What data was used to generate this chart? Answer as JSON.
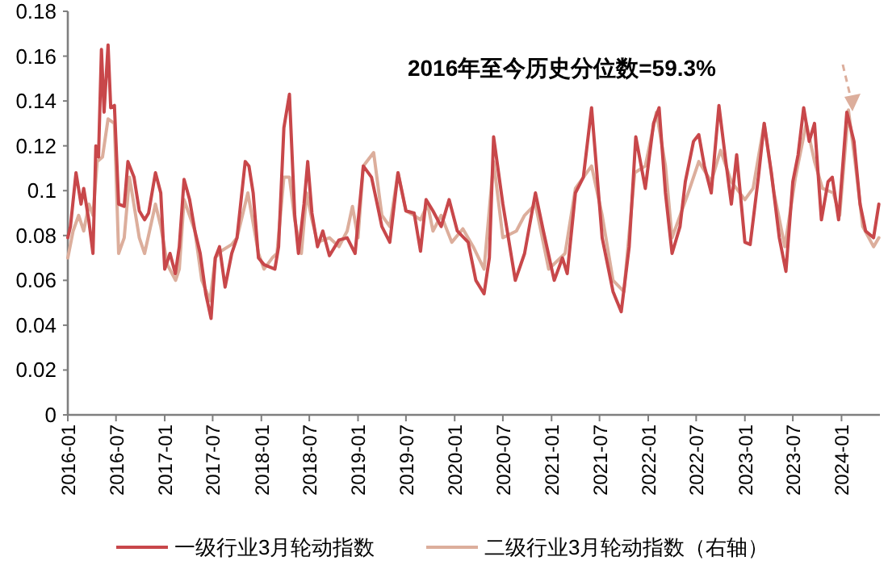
{
  "chart_data": {
    "type": "line",
    "annotations": [
      "2016年至今历史分位数=59.3%"
    ],
    "xlim": [
      "2016-01-01",
      "2024-05-25"
    ],
    "xticks": [
      "2016-01",
      "2016-07",
      "2017-01",
      "2017-07",
      "2018-01",
      "2018-07",
      "2019-01",
      "2019-07",
      "2020-01",
      "2020-07",
      "2021-01",
      "2021-07",
      "2022-01",
      "2022-07",
      "2023-01",
      "2023-07",
      "2024-01"
    ],
    "ylim": [
      0,
      0.18
    ],
    "yticks": [
      0,
      0.02,
      0.04,
      0.06,
      0.08,
      0.1,
      0.12,
      0.14,
      0.16,
      0.18
    ],
    "legend": "bottom",
    "grid": false,
    "marker": "none",
    "line_style": "solid",
    "series": [
      {
        "name": "一级行业3月轮动指数",
        "color": "#c8474a",
        "x": [
          "2016-01-01",
          "2016-01-11",
          "2016-02-01",
          "2016-02-20",
          "2016-03-01",
          "2016-03-20",
          "2016-04-05",
          "2016-04-16",
          "2016-04-26",
          "2016-05-07",
          "2016-05-17",
          "2016-06-01",
          "2016-06-11",
          "2016-06-25",
          "2016-07-11",
          "2016-08-01",
          "2016-08-15",
          "2016-09-07",
          "2016-09-27",
          "2016-10-17",
          "2016-11-01",
          "2016-11-27",
          "2016-12-17",
          "2017-01-01",
          "2017-01-21",
          "2017-02-10",
          "2017-02-25",
          "2017-03-15",
          "2017-04-05",
          "2017-04-25",
          "2017-05-15",
          "2017-06-05",
          "2017-06-25",
          "2017-07-11",
          "2017-07-27",
          "2017-08-17",
          "2017-09-11",
          "2017-10-01",
          "2017-11-01",
          "2017-11-15",
          "2017-12-01",
          "2017-12-21",
          "2018-01-11",
          "2018-02-21",
          "2018-03-07",
          "2018-03-27",
          "2018-04-17",
          "2018-05-07",
          "2018-05-21",
          "2018-06-11",
          "2018-06-25",
          "2018-07-11",
          "2018-08-01",
          "2018-08-21",
          "2018-09-15",
          "2018-10-21",
          "2018-11-21",
          "2018-12-21",
          "2019-01-21",
          "2019-02-21",
          "2019-03-11",
          "2019-04-01",
          "2019-05-01",
          "2019-06-01",
          "2019-07-01",
          "2019-08-01",
          "2019-08-25",
          "2019-09-15",
          "2019-10-11",
          "2019-11-11",
          "2019-12-11",
          "2020-01-11",
          "2020-02-21",
          "2020-03-21",
          "2020-04-21",
          "2020-05-11",
          "2020-05-27",
          "2020-07-01",
          "2020-08-17",
          "2020-09-21",
          "2020-11-01",
          "2020-12-01",
          "2021-01-11",
          "2021-02-11",
          "2021-03-01",
          "2021-04-01",
          "2021-05-01",
          "2021-06-01",
          "2021-07-11",
          "2021-08-21",
          "2021-09-21",
          "2021-10-21",
          "2021-11-15",
          "2021-12-21",
          "2022-01-21",
          "2022-02-11",
          "2022-03-07",
          "2022-04-01",
          "2022-05-01",
          "2022-05-21",
          "2022-06-21",
          "2022-07-11",
          "2022-08-01",
          "2022-08-27",
          "2022-09-25",
          "2022-10-21",
          "2022-11-11",
          "2022-12-01",
          "2023-01-01",
          "2023-01-21",
          "2023-02-21",
          "2023-03-15",
          "2023-04-11",
          "2023-05-11",
          "2023-06-05",
          "2023-07-01",
          "2023-07-21",
          "2023-08-11",
          "2023-09-01",
          "2023-09-21",
          "2023-10-17",
          "2023-11-11",
          "2023-11-27",
          "2023-12-21",
          "2024-01-21",
          "2024-02-17",
          "2024-03-11",
          "2024-04-01",
          "2024-05-01",
          "2024-05-21"
        ],
        "values": [
          0.079,
          0.084,
          0.108,
          0.094,
          0.101,
          0.087,
          0.072,
          0.12,
          0.115,
          0.163,
          0.135,
          0.165,
          0.137,
          0.138,
          0.094,
          0.093,
          0.113,
          0.106,
          0.091,
          0.087,
          0.09,
          0.108,
          0.099,
          0.065,
          0.072,
          0.063,
          0.075,
          0.105,
          0.096,
          0.082,
          0.072,
          0.054,
          0.043,
          0.07,
          0.075,
          0.057,
          0.072,
          0.079,
          0.113,
          0.111,
          0.099,
          0.07,
          0.067,
          0.065,
          0.075,
          0.128,
          0.143,
          0.089,
          0.072,
          0.094,
          0.113,
          0.09,
          0.075,
          0.082,
          0.071,
          0.078,
          0.079,
          0.072,
          0.111,
          0.106,
          0.096,
          0.084,
          0.077,
          0.108,
          0.091,
          0.09,
          0.073,
          0.096,
          0.091,
          0.084,
          0.096,
          0.082,
          0.077,
          0.06,
          0.054,
          0.07,
          0.124,
          0.094,
          0.06,
          0.072,
          0.099,
          0.082,
          0.06,
          0.07,
          0.063,
          0.099,
          0.106,
          0.137,
          0.079,
          0.055,
          0.046,
          0.075,
          0.124,
          0.101,
          0.13,
          0.137,
          0.099,
          0.072,
          0.084,
          0.104,
          0.122,
          0.125,
          0.111,
          0.099,
          0.138,
          0.113,
          0.094,
          0.116,
          0.077,
          0.076,
          0.106,
          0.13,
          0.108,
          0.079,
          0.064,
          0.104,
          0.116,
          0.137,
          0.122,
          0.13,
          0.087,
          0.104,
          0.106,
          0.087,
          0.135,
          0.122,
          0.094,
          0.082,
          0.079,
          0.094
        ]
      },
      {
        "name": "二级行业3月轮动指数（右轴）",
        "color": "#dcae9c",
        "x": [
          "2016-01-01",
          "2016-01-21",
          "2016-02-11",
          "2016-03-01",
          "2016-03-21",
          "2016-04-05",
          "2016-04-21",
          "2016-05-11",
          "2016-06-01",
          "2016-06-25",
          "2016-07-11",
          "2016-08-01",
          "2016-08-21",
          "2016-09-27",
          "2016-10-17",
          "2016-11-27",
          "2016-12-17",
          "2017-01-11",
          "2017-02-11",
          "2017-02-25",
          "2017-03-15",
          "2017-04-25",
          "2017-05-21",
          "2017-06-21",
          "2017-07-11",
          "2017-08-01",
          "2017-09-11",
          "2017-10-01",
          "2017-11-11",
          "2017-12-21",
          "2018-01-11",
          "2018-02-11",
          "2018-03-01",
          "2018-03-27",
          "2018-04-17",
          "2018-05-07",
          "2018-06-01",
          "2018-06-21",
          "2018-07-11",
          "2018-08-01",
          "2018-09-15",
          "2018-10-21",
          "2018-11-21",
          "2018-12-11",
          "2019-01-01",
          "2019-01-21",
          "2019-03-01",
          "2019-04-01",
          "2019-05-01",
          "2019-06-01",
          "2019-07-01",
          "2019-08-01",
          "2019-08-25",
          "2019-09-21",
          "2019-10-11",
          "2019-11-11",
          "2019-12-21",
          "2020-02-01",
          "2020-03-11",
          "2020-04-21",
          "2020-05-27",
          "2020-07-01",
          "2020-08-21",
          "2020-09-21",
          "2020-11-01",
          "2020-12-21",
          "2021-02-21",
          "2021-04-01",
          "2021-06-01",
          "2021-07-11",
          "2021-08-21",
          "2021-10-01",
          "2021-11-11",
          "2021-12-21",
          "2022-02-01",
          "2022-03-07",
          "2022-04-01",
          "2022-06-01",
          "2022-07-11",
          "2022-08-27",
          "2022-10-01",
          "2022-11-11",
          "2023-01-01",
          "2023-02-01",
          "2023-03-15",
          "2023-04-21",
          "2023-06-01",
          "2023-07-11",
          "2023-08-21",
          "2023-09-21",
          "2023-10-21",
          "2023-12-01",
          "2023-12-25",
          "2024-01-27",
          "2024-02-21",
          "2024-03-21",
          "2024-05-01",
          "2024-05-21"
        ],
        "values": [
          0.07,
          0.082,
          0.089,
          0.082,
          0.094,
          0.089,
          0.113,
          0.115,
          0.132,
          0.13,
          0.072,
          0.079,
          0.106,
          0.079,
          0.072,
          0.094,
          0.084,
          0.067,
          0.06,
          0.065,
          0.096,
          0.082,
          0.06,
          0.051,
          0.07,
          0.073,
          0.076,
          0.079,
          0.099,
          0.072,
          0.065,
          0.07,
          0.072,
          0.106,
          0.106,
          0.087,
          0.072,
          0.099,
          0.087,
          0.077,
          0.079,
          0.075,
          0.082,
          0.093,
          0.079,
          0.111,
          0.117,
          0.089,
          0.084,
          0.108,
          0.091,
          0.089,
          0.087,
          0.094,
          0.082,
          0.089,
          0.077,
          0.083,
          0.075,
          0.065,
          0.113,
          0.079,
          0.082,
          0.089,
          0.094,
          0.065,
          0.072,
          0.101,
          0.111,
          0.089,
          0.06,
          0.055,
          0.108,
          0.111,
          0.135,
          0.111,
          0.079,
          0.099,
          0.113,
          0.104,
          0.118,
          0.104,
          0.096,
          0.101,
          0.13,
          0.099,
          0.075,
          0.106,
          0.13,
          0.113,
          0.101,
          0.099,
          0.089,
          0.136,
          0.113,
          0.084,
          0.075,
          0.079
        ]
      }
    ]
  }
}
